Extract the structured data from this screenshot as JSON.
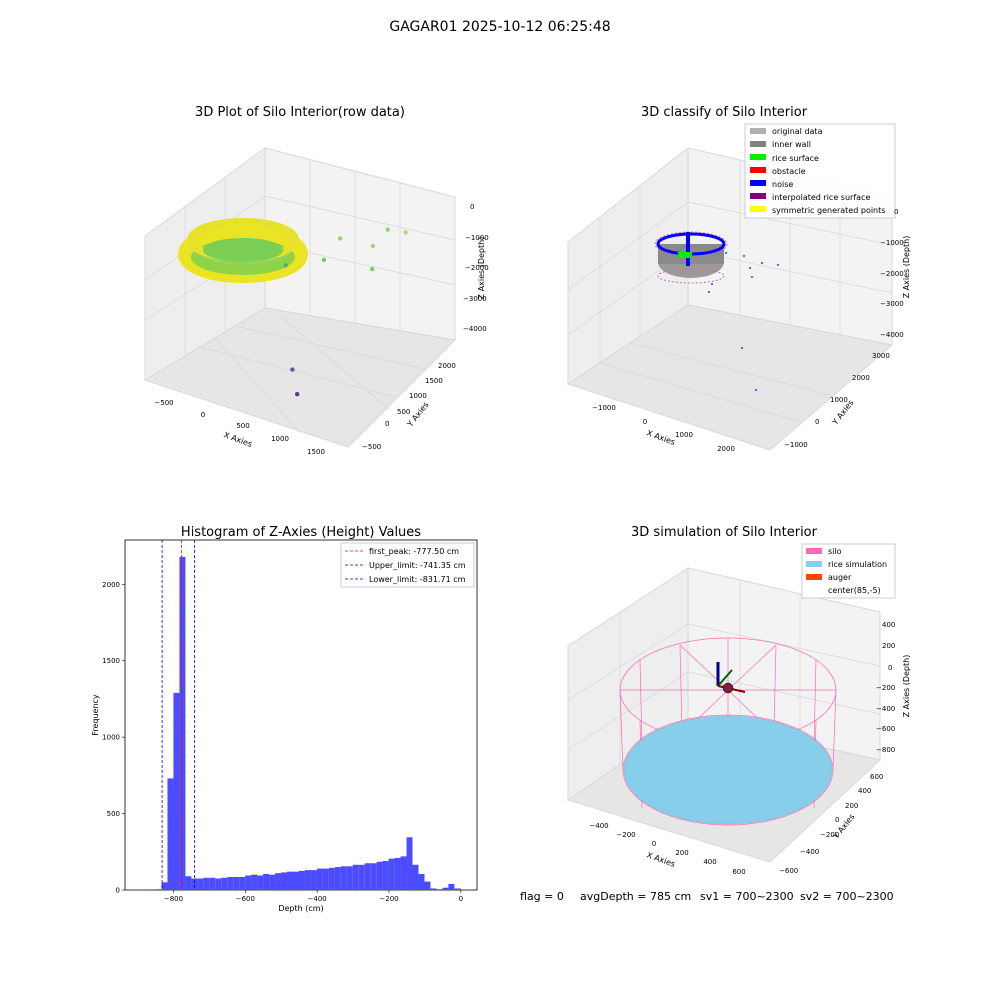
{
  "figure_title": "GAGAR01 2025-10-12 06:25:48",
  "status_line": {
    "flag": "flag = 0",
    "avg_depth": "avgDepth = 785 cm",
    "sv1": "sv1 = 700~2300",
    "sv2": "sv2 = 700~2300"
  },
  "colors": {
    "raw_cloud_outer": "#f2ec1c",
    "raw_cloud_inner": "#7ed957",
    "original_data": "#b0b0b0",
    "inner_wall": "#808080",
    "rice_surface": "#00ee00",
    "obstacle": "#ff0000",
    "noise": "#0000ff",
    "interpolated_rice_surface": "#800080",
    "symmetric_generated_points": "#ffff00",
    "histogram_bars": "#4b4bff",
    "first_peak_line": "#ff0000",
    "limit_lines": "#0000cc",
    "silo": "#ff69b4",
    "rice_simulation": "#87ceeb",
    "auger": "#ff4500"
  },
  "chart_data": [
    {
      "type": "scatter",
      "title": "3D Plot of Silo Interior(row data)",
      "xlabel": "X Axies",
      "ylabel": "Y Axies",
      "zlabel": "Z Axies (Depth)",
      "x_ticks": [
        "−500",
        "0",
        "500",
        "1000",
        "1500"
      ],
      "y_ticks": [
        "−500",
        "0",
        "500",
        "1000",
        "1500",
        "2000"
      ],
      "z_ticks": [
        "0",
        "−1000",
        "−2000",
        "−3000",
        "−4000"
      ],
      "series": [
        {
          "values": [
            {
              "x": 1300,
              "y": 1600,
              "z": -1300
            },
            {
              "x": 1150,
              "y": 1500,
              "z": -1200
            },
            {
              "x": 1000,
              "y": 1450,
              "z": -1800
            },
            {
              "x": 1150,
              "y": 1250,
              "z": -2200
            },
            {
              "x": 700,
              "y": 1300,
              "z": -1600
            },
            {
              "x": 650,
              "y": 1100,
              "z": -2100
            },
            {
              "x": 400,
              "y": 800,
              "z": -2100
            },
            {
              "x": 1200,
              "y": -100,
              "z": -3800
            },
            {
              "x": 1500,
              "y": -400,
              "z": -4000
            }
          ]
        }
      ]
    },
    {
      "type": "scatter",
      "title": "3D classify of Silo Interior",
      "xlabel": "X Axies",
      "ylabel": "Y Axies",
      "zlabel": "Z Axies (Depth)",
      "x_ticks": [
        "−1000",
        "0",
        "1000",
        "2000"
      ],
      "y_ticks": [
        "−1000",
        "0",
        "1000",
        "2000",
        "3000"
      ],
      "z_ticks": [
        "0",
        "−1000",
        "−2000",
        "−3000",
        "−4000"
      ],
      "legend": {
        "placement": "top-right",
        "entries": [
          {
            "label": "original data",
            "color": "#b0b0b0"
          },
          {
            "label": "inner wall",
            "color": "#808080"
          },
          {
            "label": "rice surface",
            "color": "#00ee00"
          },
          {
            "label": "obstacle",
            "color": "#ff0000"
          },
          {
            "label": "noise",
            "color": "#0000ff"
          },
          {
            "label": "interpolated rice surface",
            "color": "#800080"
          },
          {
            "label": "symmetric generated points",
            "color": "#ffff00"
          }
        ]
      }
    },
    {
      "type": "bar",
      "title": "Histogram of Z-Axies (Height) Values",
      "xlabel": "Depth (cm)",
      "ylabel": "Frequency",
      "xlim": [
        -935,
        45
      ],
      "ylim": [
        0,
        2290
      ],
      "x_ticks": [
        -800,
        -600,
        -400,
        -200,
        0
      ],
      "x_tick_labels": [
        "−800",
        "−600",
        "−400",
        "−200",
        "0"
      ],
      "y_ticks": [
        0,
        500,
        1000,
        1500,
        2000
      ],
      "y_tick_labels": [
        "0",
        "500",
        "1000",
        "1500",
        "2000"
      ],
      "bin_edges": [
        -850,
        -833.4,
        -816.7,
        -800.1,
        -783.4,
        -766.8,
        -750.2,
        -733.5,
        -716.9,
        -700.2,
        -683.6,
        -667.0,
        -650.3,
        -633.7,
        -617.0,
        -600.4,
        -583.8,
        -567.1,
        -550.5,
        -533.8,
        -517.2,
        -500.6,
        -483.9,
        -467.3,
        -450.6,
        -434.0,
        -417.4,
        -400.7,
        -384.1,
        -367.4,
        -350.8,
        -334.2,
        -317.5,
        -300.9,
        -284.2,
        -267.6,
        -251.0,
        -234.3,
        -217.7,
        -201.0,
        -184.4,
        -167.8,
        -151.1,
        -134.5,
        -117.8,
        -101.2,
        -84.6,
        -67.9,
        -51.3,
        -34.6,
        -18.0,
        0
      ],
      "values": [
        5,
        50,
        730,
        1290,
        2180,
        90,
        75,
        75,
        80,
        80,
        75,
        80,
        85,
        85,
        85,
        95,
        100,
        95,
        105,
        100,
        110,
        115,
        120,
        120,
        125,
        130,
        130,
        140,
        140,
        145,
        150,
        155,
        155,
        165,
        165,
        175,
        175,
        185,
        190,
        205,
        210,
        220,
        345,
        165,
        105,
        55,
        10,
        5,
        15,
        40,
        10
      ],
      "vlines": [
        {
          "label": "first_peak: -777.50 cm",
          "x": -777.5,
          "color": "#ff0000"
        },
        {
          "label": "Upper_limit: -741.35 cm",
          "x": -741.35,
          "color": "#0000cc"
        },
        {
          "label": "Lower_limit: -831.71 cm",
          "x": -831.71,
          "color": "#0000cc"
        }
      ],
      "legend": {
        "placement": "top-right"
      }
    },
    {
      "type": "scatter",
      "title": "3D simulation of Silo Interior",
      "xlabel": "X Axies",
      "ylabel": "Y Axies",
      "zlabel": "Z Axies (Depth)",
      "x_ticks": [
        "−400",
        "−200",
        "0",
        "200",
        "400",
        "600"
      ],
      "y_ticks": [
        "−600",
        "−400",
        "−200",
        "0",
        "200",
        "400",
        "600"
      ],
      "z_ticks": [
        "400",
        "200",
        "0",
        "−200",
        "−400",
        "−600",
        "−800"
      ],
      "legend": {
        "placement": "top-right",
        "entries": [
          {
            "label": "silo",
            "color": "#ff69b4"
          },
          {
            "label": "rice simulation",
            "color": "#87ceeb"
          },
          {
            "label": "auger",
            "color": "#ff4500"
          },
          {
            "label": "center(85,-5)",
            "color": ""
          }
        ]
      }
    }
  ]
}
